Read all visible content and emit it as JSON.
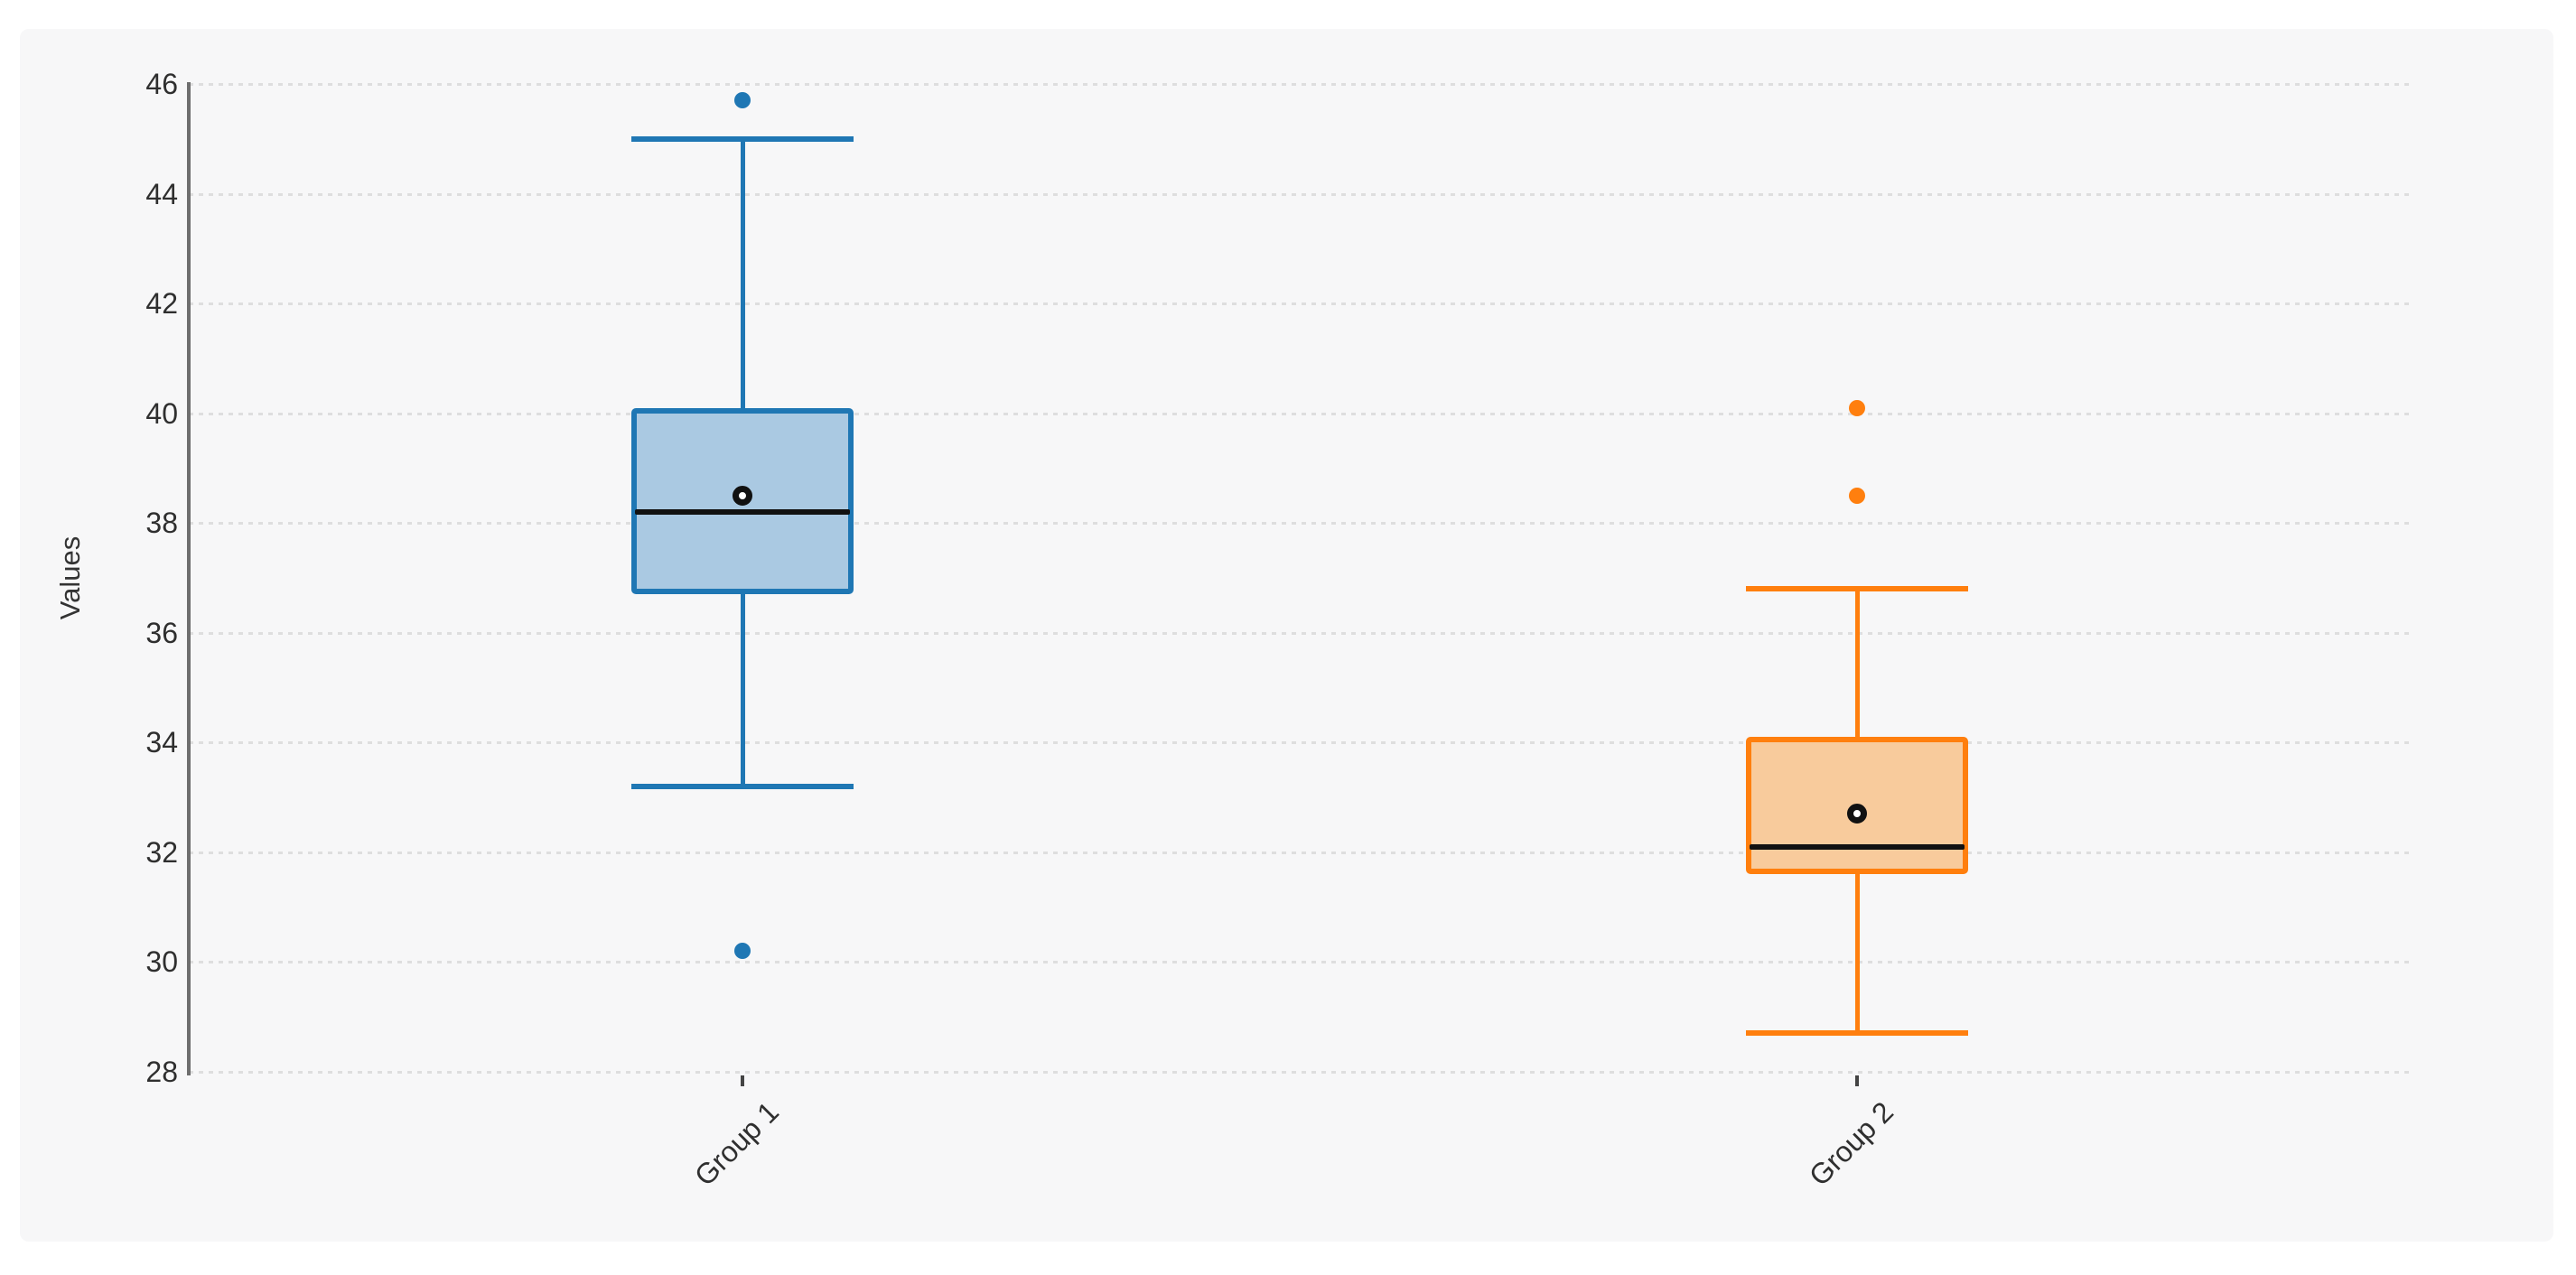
{
  "page": {
    "background": "#ffffff",
    "canvas_background": "#f7f7f8"
  },
  "chart_data": {
    "type": "boxplot",
    "title": "",
    "ylabel": "Values",
    "xlabel": "",
    "categories": [
      "Group 1",
      "Group 2"
    ],
    "yticks": [
      46,
      44,
      42,
      40,
      38,
      36,
      34,
      32,
      30,
      28
    ],
    "ylim": [
      28,
      46
    ],
    "grid": "horizontal dotted lines",
    "legend_position": "none",
    "median_color": "#111111",
    "mean_marker": "open circle (white fill, black ring)",
    "series": [
      {
        "name": "Group 1",
        "color": "#1f77b4",
        "fill": "#aac9e2",
        "whisker_low": 33.2,
        "q1": 36.7,
        "median": 38.2,
        "mean": 38.5,
        "q3": 40.1,
        "whisker_high": 45.0,
        "outliers": [
          45.7,
          30.2
        ]
      },
      {
        "name": "Group 2",
        "color": "#ff7f0e",
        "fill": "#f8cb9c",
        "whisker_low": 28.7,
        "q1": 31.6,
        "median": 32.1,
        "mean": 32.7,
        "q3": 34.1,
        "whisker_high": 36.8,
        "outliers": [
          40.1,
          38.5
        ]
      }
    ]
  }
}
